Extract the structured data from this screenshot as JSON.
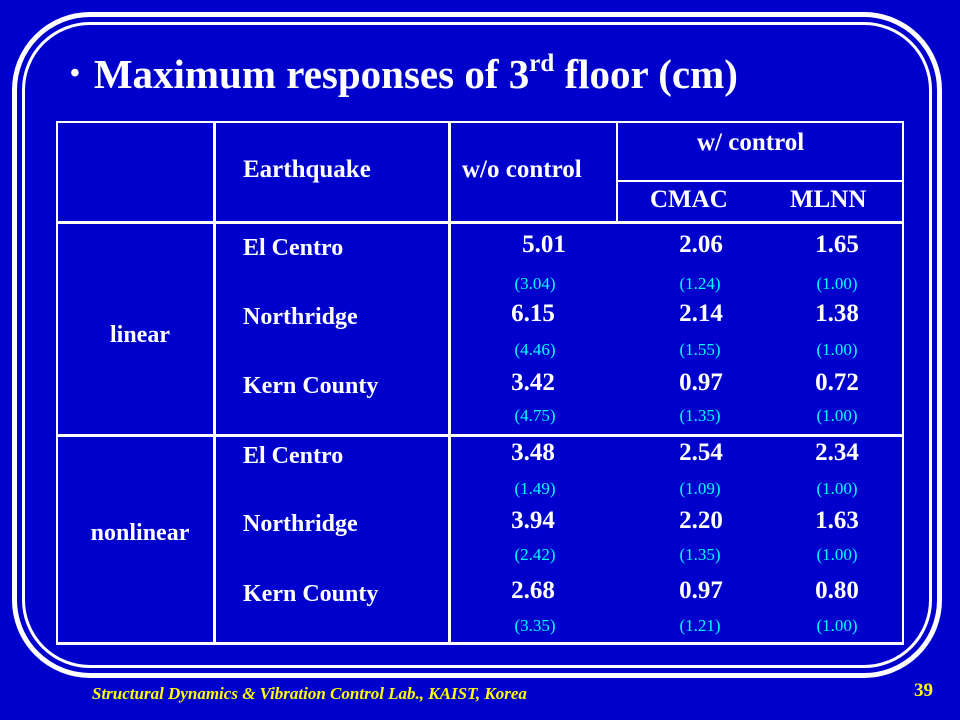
{
  "title": {
    "bullet": "•",
    "prefix": "Maximum responses of 3",
    "superscript": "rd",
    "suffix": " floor (cm)"
  },
  "table": {
    "headers": {
      "earthquake": "Earthquake",
      "without_control": "w/o control",
      "with_control": "w/ control",
      "cmac": "CMAC",
      "mlnn": "MLNN"
    },
    "groups": [
      {
        "label": "linear",
        "rows": [
          {
            "earthquake": "El Centro",
            "wo": "5.01",
            "wo_ratio": "(3.04)",
            "cmac": "2.06",
            "cmac_ratio": "(1.24)",
            "mlnn": "1.65",
            "mlnn_ratio": "(1.00)"
          },
          {
            "earthquake": "Northridge",
            "wo": "6.15",
            "wo_ratio": "(4.46)",
            "cmac": "2.14",
            "cmac_ratio": "(1.55)",
            "mlnn": "1.38",
            "mlnn_ratio": "(1.00)"
          },
          {
            "earthquake": "Kern County",
            "wo": "3.42",
            "wo_ratio": "(4.75)",
            "cmac": "0.97",
            "cmac_ratio": "(1.35)",
            "mlnn": "0.72",
            "mlnn_ratio": "(1.00)"
          }
        ]
      },
      {
        "label": "nonlinear",
        "rows": [
          {
            "earthquake": "El Centro",
            "wo": "3.48",
            "wo_ratio": "(1.49)",
            "cmac": "2.54",
            "cmac_ratio": "(1.09)",
            "mlnn": "2.34",
            "mlnn_ratio": "(1.00)"
          },
          {
            "earthquake": "Northridge",
            "wo": "3.94",
            "wo_ratio": "(2.42)",
            "cmac": "2.20",
            "cmac_ratio": "(1.35)",
            "mlnn": "1.63",
            "mlnn_ratio": "(1.00)"
          },
          {
            "earthquake": "Kern County",
            "wo": "2.68",
            "wo_ratio": "(3.35)",
            "cmac": "0.97",
            "cmac_ratio": "(1.21)",
            "mlnn": "0.80",
            "mlnn_ratio": "(1.00)"
          }
        ]
      }
    ]
  },
  "footer": {
    "lab": "Structural Dynamics & Vibration Control Lab., KAIST, Korea",
    "page": "39"
  },
  "colors": {
    "background": "#0000CC",
    "text": "#FFFFFF",
    "ratio": "#00FFFF",
    "footer": "#FFFF00"
  }
}
